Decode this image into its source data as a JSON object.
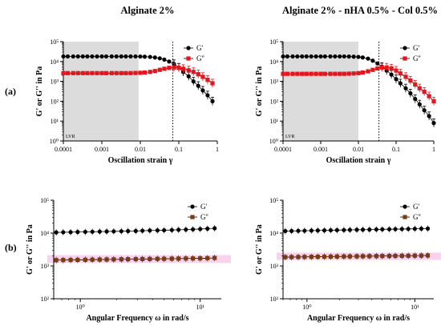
{
  "titles": [
    "Alginate 2%",
    "Alginate 2% - nHA 0.5% - Col 0.5%"
  ],
  "row_labels": [
    "(a)",
    "(b)"
  ],
  "colors": {
    "gprime": "#000000",
    "gdouble_a": "#e8141b",
    "gdouble_b": "#7a3b12",
    "lvr_shade": "#dcdcdc",
    "band": "#f7c7ea"
  },
  "chart_data": [
    {
      "type": "line",
      "title": "Alginate 2%",
      "xlabel": "Oscillation strain γ",
      "ylabel": "G' or G'' in Pa",
      "log_x": true,
      "log_y": true,
      "xlim": [
        0.0001,
        1
      ],
      "ylim": [
        1,
        100000
      ],
      "x_tick_labels": [
        "0.0001",
        "0.001",
        "0.01",
        "0.1",
        "1"
      ],
      "y_tick_labels": [
        "10⁰",
        "10¹",
        "10²",
        "10³",
        "10⁴",
        "10⁵"
      ],
      "annotation": "LVR",
      "lvr_region": [
        0.0001,
        0.009
      ],
      "critical_strain": 0.07,
      "legend_position": "top-right",
      "series": [
        {
          "name": "G'",
          "marker": "circle",
          "color": "#000000",
          "x": [
            0.0001,
            0.00013,
            0.00018,
            0.00024,
            0.00032,
            0.00042,
            0.00056,
            0.00075,
            0.001,
            0.0013,
            0.0018,
            0.0024,
            0.0032,
            0.0042,
            0.0056,
            0.0075,
            0.01,
            0.013,
            0.018,
            0.024,
            0.032,
            0.042,
            0.056,
            0.075,
            0.1,
            0.13,
            0.18,
            0.24,
            0.32,
            0.42,
            0.56,
            0.75
          ],
          "y": [
            18000,
            18000,
            18000,
            18000,
            18000,
            18000,
            18000,
            18000,
            18000,
            18000,
            18000,
            18000,
            18000,
            18000,
            18000,
            18000,
            17800,
            17500,
            17000,
            16000,
            14500,
            12500,
            10000,
            7500,
            5000,
            3000,
            1800,
            1000,
            600,
            350,
            200,
            100
          ]
        },
        {
          "name": "G''",
          "marker": "square",
          "color": "#e8141b",
          "x": [
            0.0001,
            0.00013,
            0.00018,
            0.00024,
            0.00032,
            0.00042,
            0.00056,
            0.00075,
            0.001,
            0.0013,
            0.0018,
            0.0024,
            0.0032,
            0.0042,
            0.0056,
            0.0075,
            0.01,
            0.013,
            0.018,
            0.024,
            0.032,
            0.042,
            0.056,
            0.075,
            0.1,
            0.13,
            0.18,
            0.24,
            0.32,
            0.42,
            0.56,
            0.75
          ],
          "y": [
            2600,
            2600,
            2600,
            2600,
            2600,
            2600,
            2600,
            2600,
            2600,
            2600,
            2600,
            2600,
            2600,
            2600,
            2600,
            2650,
            2700,
            2800,
            3000,
            3300,
            3800,
            4300,
            4800,
            5000,
            4800,
            4300,
            3600,
            3000,
            2300,
            1700,
            1200,
            800
          ]
        }
      ]
    },
    {
      "type": "line",
      "title": "Alginate 2% - nHA 0.5% - Col 0.5%",
      "xlabel": "Oscillation strain γ",
      "ylabel": "G' or G'' in Pa",
      "log_x": true,
      "log_y": true,
      "xlim": [
        0.0001,
        1
      ],
      "ylim": [
        1,
        100000
      ],
      "x_tick_labels": [
        "0.0001",
        "0.001",
        "0.01",
        "0.1",
        "1"
      ],
      "y_tick_labels": [
        "10⁰",
        "10¹",
        "10²",
        "10³",
        "10⁴",
        "10⁵"
      ],
      "annotation": "LVR",
      "lvr_region": [
        0.0001,
        0.01
      ],
      "critical_strain": 0.035,
      "legend_position": "top-right",
      "series": [
        {
          "name": "G'",
          "marker": "circle",
          "color": "#000000",
          "x": [
            0.0001,
            0.00013,
            0.00018,
            0.00024,
            0.00032,
            0.00042,
            0.00056,
            0.00075,
            0.001,
            0.0013,
            0.0018,
            0.0024,
            0.0032,
            0.0042,
            0.0056,
            0.0075,
            0.01,
            0.013,
            0.018,
            0.024,
            0.032,
            0.042,
            0.056,
            0.075,
            0.1,
            0.13,
            0.18,
            0.24,
            0.32,
            0.42,
            0.56,
            0.75,
            1
          ],
          "y": [
            18000,
            18000,
            18000,
            18000,
            18000,
            18000,
            18000,
            18000,
            18000,
            18000,
            18000,
            18000,
            18000,
            18000,
            17800,
            17500,
            17000,
            16000,
            14000,
            11000,
            8000,
            5500,
            3500,
            2200,
            1300,
            800,
            450,
            250,
            130,
            70,
            35,
            18,
            8
          ]
        },
        {
          "name": "G''",
          "marker": "square",
          "color": "#e8141b",
          "x": [
            0.0001,
            0.00013,
            0.00018,
            0.00024,
            0.00032,
            0.00042,
            0.00056,
            0.00075,
            0.001,
            0.0013,
            0.0018,
            0.0024,
            0.0032,
            0.0042,
            0.0056,
            0.0075,
            0.01,
            0.013,
            0.018,
            0.024,
            0.032,
            0.042,
            0.056,
            0.075,
            0.1,
            0.13,
            0.18,
            0.24,
            0.32,
            0.42,
            0.56,
            0.75,
            1
          ],
          "y": [
            2400,
            2400,
            2400,
            2400,
            2400,
            2400,
            2400,
            2400,
            2400,
            2400,
            2400,
            2400,
            2400,
            2400,
            2450,
            2500,
            2600,
            2800,
            3200,
            3800,
            4500,
            5000,
            5000,
            4500,
            3500,
            2500,
            1700,
            1100,
            700,
            450,
            300,
            180,
            100
          ]
        }
      ]
    },
    {
      "type": "line",
      "xlabel": "Angular Frequency ω in rad/s",
      "ylabel": "G' or G'' in Pa",
      "log_x": true,
      "log_y": true,
      "xlim": [
        0.6,
        15
      ],
      "ylim": [
        100,
        100000
      ],
      "x_tick_labels": [
        "10⁰",
        "10¹"
      ],
      "y_tick_labels": [
        "10²",
        "10³",
        "10⁴",
        "10⁵"
      ],
      "legend_position": "top-right",
      "series": [
        {
          "name": "G'",
          "marker": "circle",
          "color": "#000000",
          "x": [
            0.63,
            0.72,
            0.83,
            0.95,
            1.1,
            1.26,
            1.45,
            1.66,
            1.9,
            2.2,
            2.5,
            2.9,
            3.3,
            3.8,
            4.4,
            5.0,
            5.8,
            6.6,
            7.6,
            8.7,
            10,
            11.5,
            13.2
          ],
          "y": [
            10500,
            10600,
            10700,
            10800,
            10900,
            11000,
            11100,
            11200,
            11300,
            11400,
            11500,
            11600,
            11800,
            12000,
            12100,
            12200,
            12400,
            12600,
            12800,
            13000,
            13300,
            13600,
            14000
          ]
        },
        {
          "name": "G''",
          "marker": "square",
          "color": "#7a3b12",
          "x": [
            0.63,
            0.72,
            0.83,
            0.95,
            1.1,
            1.26,
            1.45,
            1.66,
            1.9,
            2.2,
            2.5,
            2.9,
            3.3,
            3.8,
            4.4,
            5.0,
            5.8,
            6.6,
            7.6,
            8.7,
            10,
            11.5,
            13.2
          ],
          "y": [
            1500,
            1510,
            1520,
            1530,
            1540,
            1550,
            1560,
            1570,
            1580,
            1590,
            1600,
            1610,
            1620,
            1630,
            1640,
            1650,
            1660,
            1670,
            1680,
            1690,
            1700,
            1720,
            1750
          ]
        }
      ]
    },
    {
      "type": "line",
      "xlabel": "Angular Frequency ω in rad/s",
      "ylabel": "G' or G'' in Pa",
      "log_x": true,
      "log_y": true,
      "xlim": [
        0.6,
        15
      ],
      "ylim": [
        100,
        100000
      ],
      "x_tick_labels": [
        "10⁰",
        "10¹"
      ],
      "y_tick_labels": [
        "10²",
        "10³",
        "10⁴",
        "10⁵"
      ],
      "legend_position": "top-right",
      "series": [
        {
          "name": "G'",
          "marker": "circle",
          "color": "#000000",
          "x": [
            0.63,
            0.72,
            0.83,
            0.95,
            1.1,
            1.26,
            1.45,
            1.66,
            1.9,
            2.2,
            2.5,
            2.9,
            3.3,
            3.8,
            4.4,
            5.0,
            5.8,
            6.6,
            7.6,
            8.7,
            10,
            11.5,
            13.2
          ],
          "y": [
            11500,
            11600,
            11700,
            11800,
            11900,
            12000,
            12100,
            12200,
            12300,
            12400,
            12500,
            12600,
            12700,
            12800,
            12900,
            13000,
            13100,
            13200,
            13300,
            13400,
            13500,
            13600,
            13700
          ]
        },
        {
          "name": "G''",
          "marker": "square",
          "color": "#7a3b12",
          "x": [
            0.63,
            0.72,
            0.83,
            0.95,
            1.1,
            1.26,
            1.45,
            1.66,
            1.9,
            2.2,
            2.5,
            2.9,
            3.3,
            3.8,
            4.4,
            5.0,
            5.8,
            6.6,
            7.6,
            8.7,
            10,
            11.5,
            13.2
          ],
          "y": [
            1850,
            1860,
            1870,
            1880,
            1890,
            1900,
            1910,
            1920,
            1930,
            1940,
            1950,
            1960,
            1970,
            1980,
            1990,
            2000,
            2010,
            2020,
            2030,
            2040,
            2050,
            2060,
            2080
          ]
        }
      ]
    }
  ]
}
